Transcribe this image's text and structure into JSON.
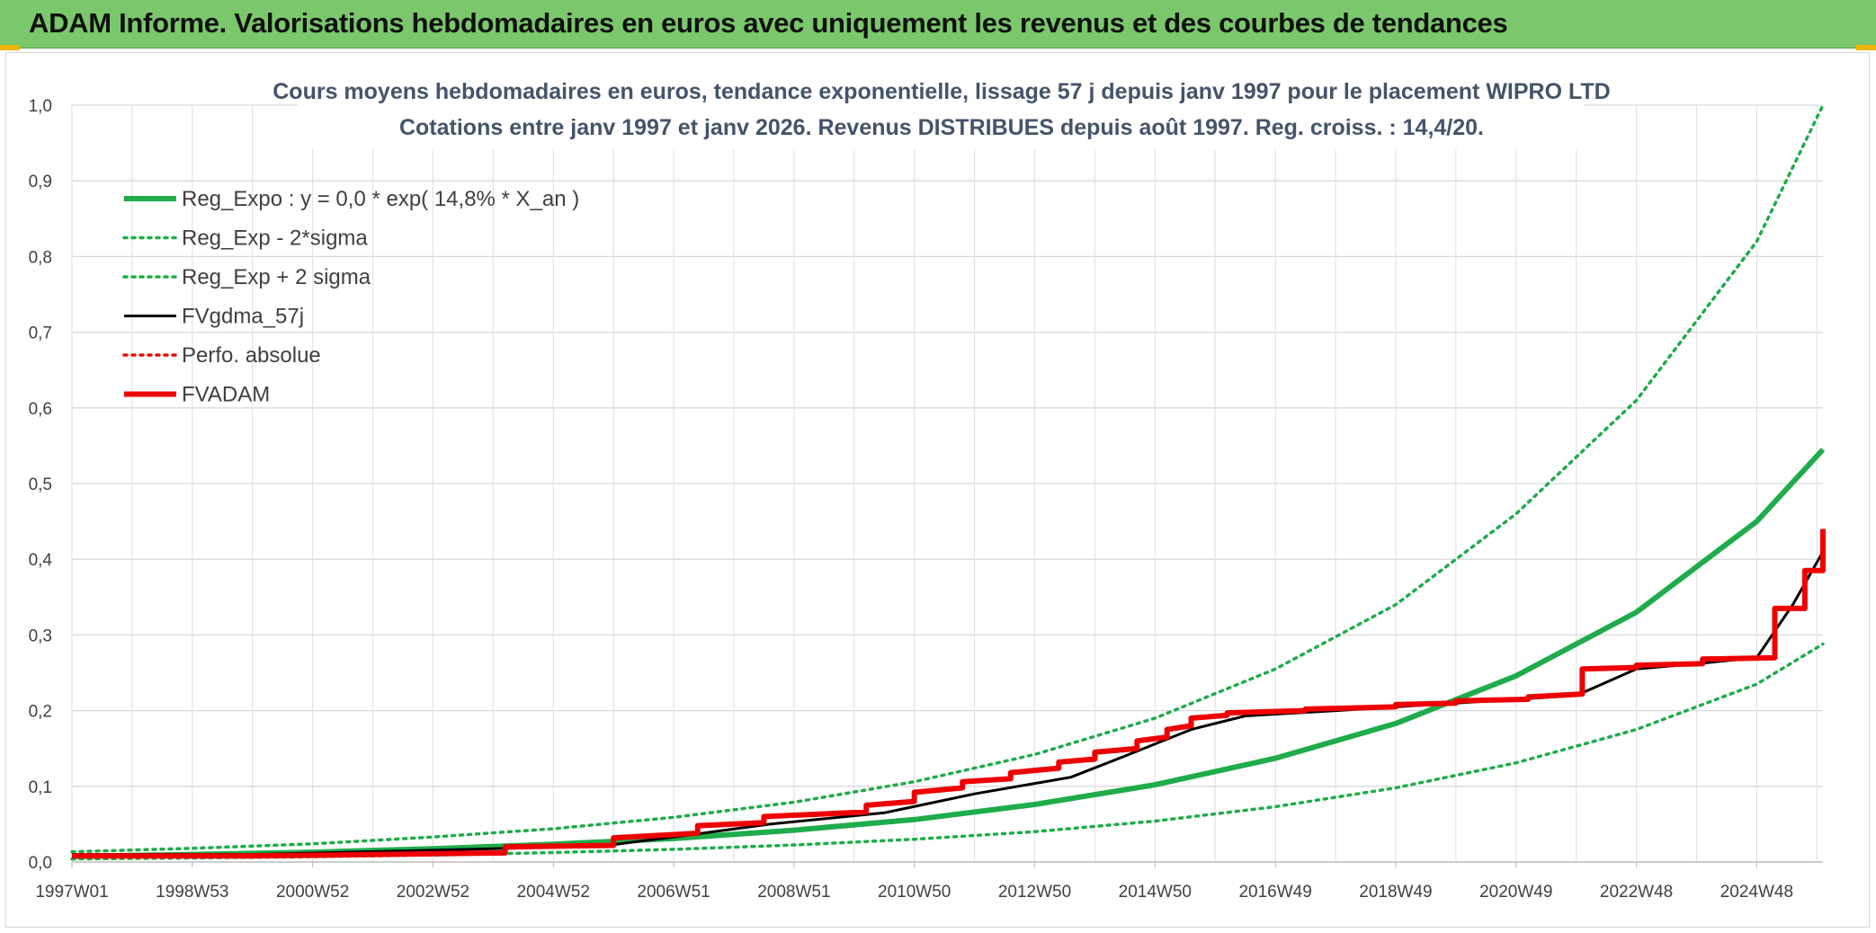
{
  "header": {
    "title": "ADAM Informe. Valorisations hebdomadaires en euros avec uniquement les revenus et des courbes de tendances"
  },
  "chart_data": {
    "type": "line",
    "title_lines": [
      "Cours moyens hebdomadaires en euros, tendance exponentielle, lissage 57 j depuis janv 1997 pour le placement WIPRO LTD",
      "Cotations entre janv 1997 et janv 2026. Revenus DISTRIBUES depuis août 1997. Reg. croiss. : 14,4/20."
    ],
    "xlabel": "",
    "ylabel": "",
    "xlim": [
      1997.0,
      2026.1
    ],
    "ylim": [
      0,
      1.0
    ],
    "y_ticks": [
      "0,0",
      "0,1",
      "0,2",
      "0,3",
      "0,4",
      "0,5",
      "0,6",
      "0,7",
      "0,8",
      "0,9",
      "1,0"
    ],
    "x_ticks": [
      {
        "label": "1997W01",
        "x": 1997.0
      },
      {
        "label": "1998W53",
        "x": 1999.0
      },
      {
        "label": "2000W52",
        "x": 2001.0
      },
      {
        "label": "2002W52",
        "x": 2003.0
      },
      {
        "label": "2004W52",
        "x": 2005.0
      },
      {
        "label": "2006W51",
        "x": 2007.0
      },
      {
        "label": "2008W51",
        "x": 2009.0
      },
      {
        "label": "2010W50",
        "x": 2011.0
      },
      {
        "label": "2012W50",
        "x": 2013.0
      },
      {
        "label": "2014W50",
        "x": 2015.0
      },
      {
        "label": "2016W49",
        "x": 2017.0
      },
      {
        "label": "2018W49",
        "x": 2019.0
      },
      {
        "label": "2020W49",
        "x": 2021.0
      },
      {
        "label": "2022W48",
        "x": 2023.0
      },
      {
        "label": "2024W48",
        "x": 2025.0
      }
    ],
    "legend_position": "top-left",
    "series": [
      {
        "name": "Reg_Expo : y = 0,0 * exp( 14,8% *  X_an )",
        "color": "#1fac4b",
        "style": "solid-thick",
        "x": [
          1997,
          1999,
          2001,
          2003,
          2005,
          2007,
          2009,
          2011,
          2013,
          2015,
          2017,
          2019,
          2021,
          2023,
          2025,
          2026.1
        ],
        "y": [
          0.0075,
          0.01,
          0.013,
          0.0175,
          0.0235,
          0.031,
          0.042,
          0.056,
          0.076,
          0.102,
          0.137,
          0.183,
          0.246,
          0.33,
          0.45,
          0.545
        ]
      },
      {
        "name": "Reg_Exp - 2*sigma",
        "color": "#1fac4b",
        "style": "dotted",
        "x": [
          1997,
          1999,
          2001,
          2003,
          2005,
          2007,
          2009,
          2011,
          2013,
          2015,
          2017,
          2019,
          2021,
          2023,
          2025,
          2026.1
        ],
        "y": [
          0.004,
          0.0053,
          0.007,
          0.0093,
          0.0125,
          0.0167,
          0.0224,
          0.03,
          0.04,
          0.054,
          0.073,
          0.098,
          0.131,
          0.175,
          0.235,
          0.288
        ]
      },
      {
        "name": "Reg_Exp + 2 sigma",
        "color": "#1fac4b",
        "style": "dotted",
        "x": [
          1997,
          1999,
          2001,
          2003,
          2005,
          2007,
          2009,
          2011,
          2013,
          2015,
          2017,
          2019,
          2021,
          2023,
          2025,
          2026.1
        ],
        "y": [
          0.0135,
          0.018,
          0.024,
          0.033,
          0.044,
          0.059,
          0.079,
          0.106,
          0.142,
          0.19,
          0.255,
          0.34,
          0.46,
          0.61,
          0.82,
          1.0
        ]
      },
      {
        "name": "FVgdma_57j",
        "color": "#000000",
        "style": "solid",
        "x": [
          1997,
          2000,
          2004.3,
          2006,
          2007.2,
          2008.6,
          2010.5,
          2012,
          2013.6,
          2014.5,
          2015.6,
          2016.5,
          2018,
          2020,
          2022,
          2023,
          2024,
          2025,
          2025.6,
          2026.1
        ],
        "y": [
          0.01,
          0.01,
          0.018,
          0.023,
          0.035,
          0.05,
          0.065,
          0.09,
          0.112,
          0.14,
          0.175,
          0.193,
          0.2,
          0.21,
          0.22,
          0.255,
          0.262,
          0.27,
          0.34,
          0.41
        ]
      },
      {
        "name": "Perfo. absolue",
        "color": "#e01010",
        "style": "dotted",
        "x": [],
        "y": []
      },
      {
        "name": "FVADAM",
        "color": "#ee0000",
        "style": "solid-thick",
        "x": [
          1997,
          2000,
          2004.2,
          2004.2,
          2006,
          2006,
          2007.4,
          2007.4,
          2008.5,
          2008.5,
          2010.2,
          2010.2,
          2011,
          2011,
          2011.8,
          2011.8,
          2012.6,
          2012.6,
          2013.4,
          2013.4,
          2014,
          2014,
          2014.7,
          2014.7,
          2015.2,
          2015.2,
          2015.6,
          2015.6,
          2016.2,
          2016.2,
          2017.5,
          2017.5,
          2019,
          2019,
          2020,
          2020,
          2021.2,
          2021.2,
          2022.1,
          2022.1,
          2023,
          2023,
          2024.1,
          2024.1,
          2025.3,
          2025.3,
          2025.8,
          2025.8,
          2026.1,
          2026.1
        ],
        "y": [
          0.008,
          0.008,
          0.012,
          0.02,
          0.022,
          0.032,
          0.038,
          0.048,
          0.052,
          0.06,
          0.066,
          0.075,
          0.08,
          0.092,
          0.098,
          0.106,
          0.11,
          0.118,
          0.124,
          0.132,
          0.136,
          0.145,
          0.15,
          0.16,
          0.165,
          0.175,
          0.18,
          0.19,
          0.194,
          0.197,
          0.2,
          0.202,
          0.205,
          0.208,
          0.21,
          0.213,
          0.215,
          0.218,
          0.222,
          0.255,
          0.257,
          0.26,
          0.262,
          0.268,
          0.27,
          0.335,
          0.335,
          0.385,
          0.385,
          0.44
        ]
      }
    ]
  }
}
